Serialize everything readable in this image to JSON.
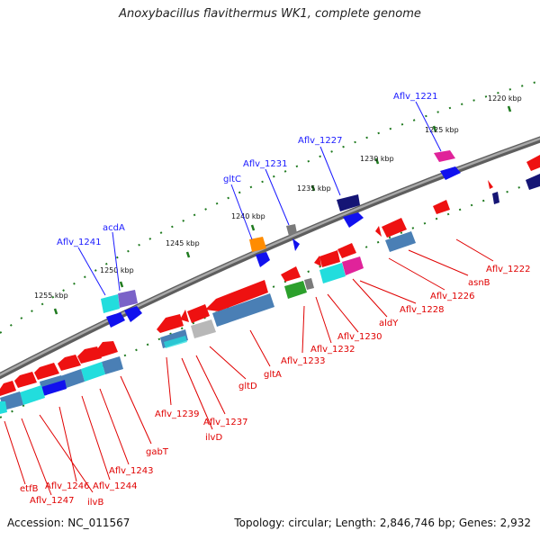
{
  "title": "Anoxybacillus flavithermus WK1, complete genome",
  "accession": "Accession: NC_011567",
  "topology": "Topology: circular; Length: 2,846,746 bp; Genes: 2,932",
  "colors": {
    "backbone": "#777777",
    "tick": "#1f7a1f",
    "forward_label": "#1a1aff",
    "reverse_label": "#e00000",
    "red": "#ee1111",
    "blue": "#1111ee",
    "steel": "#4a7fb5",
    "cyan": "#22dddd",
    "magenta": "#e0239a",
    "purple": "#7a62c8",
    "navy": "#151575",
    "orange": "#ff8c00",
    "green": "#2ca02c",
    "gray": "#7a7a7a",
    "silver": "#b8b8b8"
  },
  "scale_labels": [
    "1220 kbp",
    "1225 kbp",
    "1230 kbp",
    "1235 kbp",
    "1240 kbp",
    "1245 kbp",
    "1250 kbp",
    "1255 kbp"
  ],
  "forward_labels": [
    "Aflv_1221",
    "Aflv_1227",
    "Aflv_1231",
    "gltC",
    "acdA",
    "Aflv_1241"
  ],
  "reverse_labels": [
    "Aflv_1222",
    "asnB",
    "Aflv_1226",
    "Aflv_1228",
    "aldY",
    "Aflv_1230",
    "Aflv_1232",
    "Aflv_1233",
    "gltA",
    "gltD",
    "Aflv_1237",
    "ilvD",
    "Aflv_1239",
    "gabT",
    "Aflv_1243",
    "Aflv_1244",
    "Aflv_1246",
    "ilvB",
    "Aflv_1247",
    "etfB"
  ]
}
